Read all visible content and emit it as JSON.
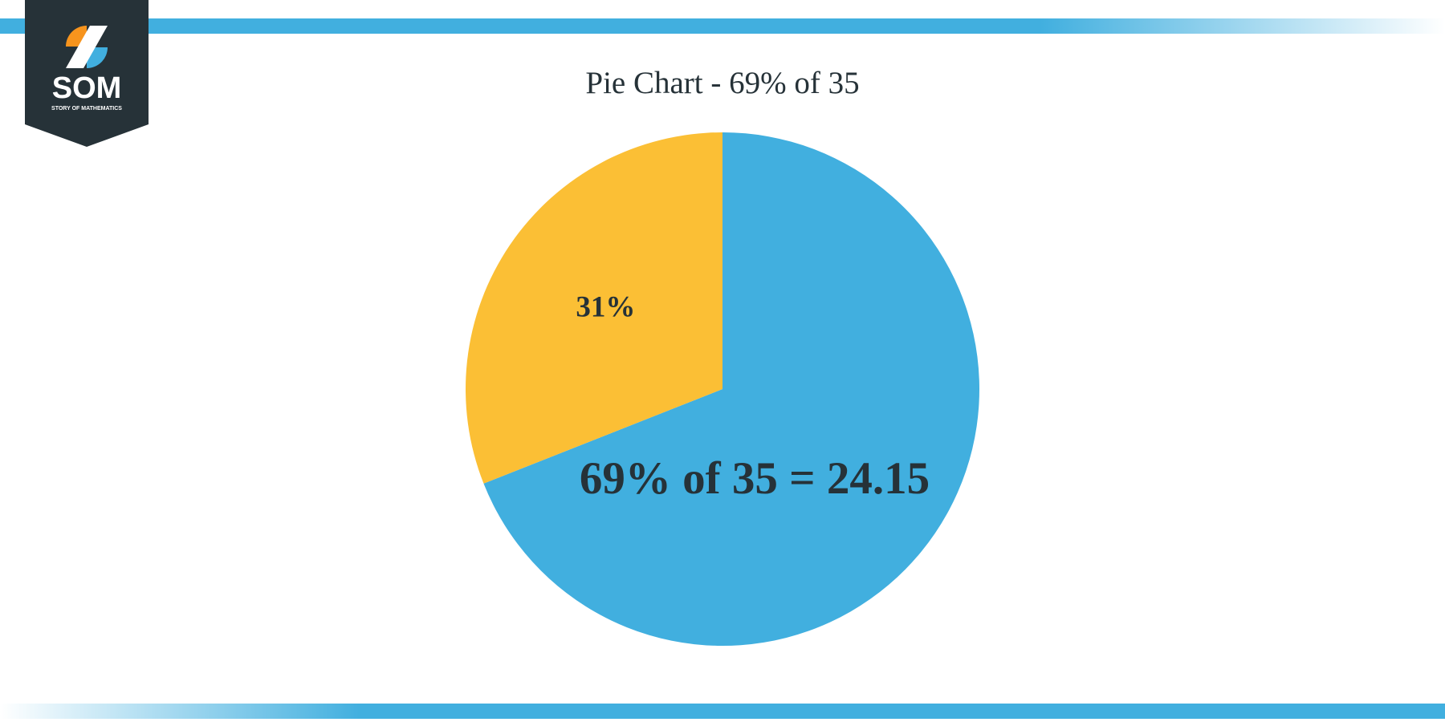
{
  "logo": {
    "name": "SOM",
    "tagline": "STORY OF MATHEMATICS"
  },
  "chart_data": {
    "type": "pie",
    "title": "Pie Chart - 69% of 35",
    "values": [
      69,
      31
    ],
    "value_labels": [
      "69% of 35 = 24.15",
      "31%"
    ],
    "colors": [
      "#41afdf",
      "#fbbf35"
    ]
  }
}
